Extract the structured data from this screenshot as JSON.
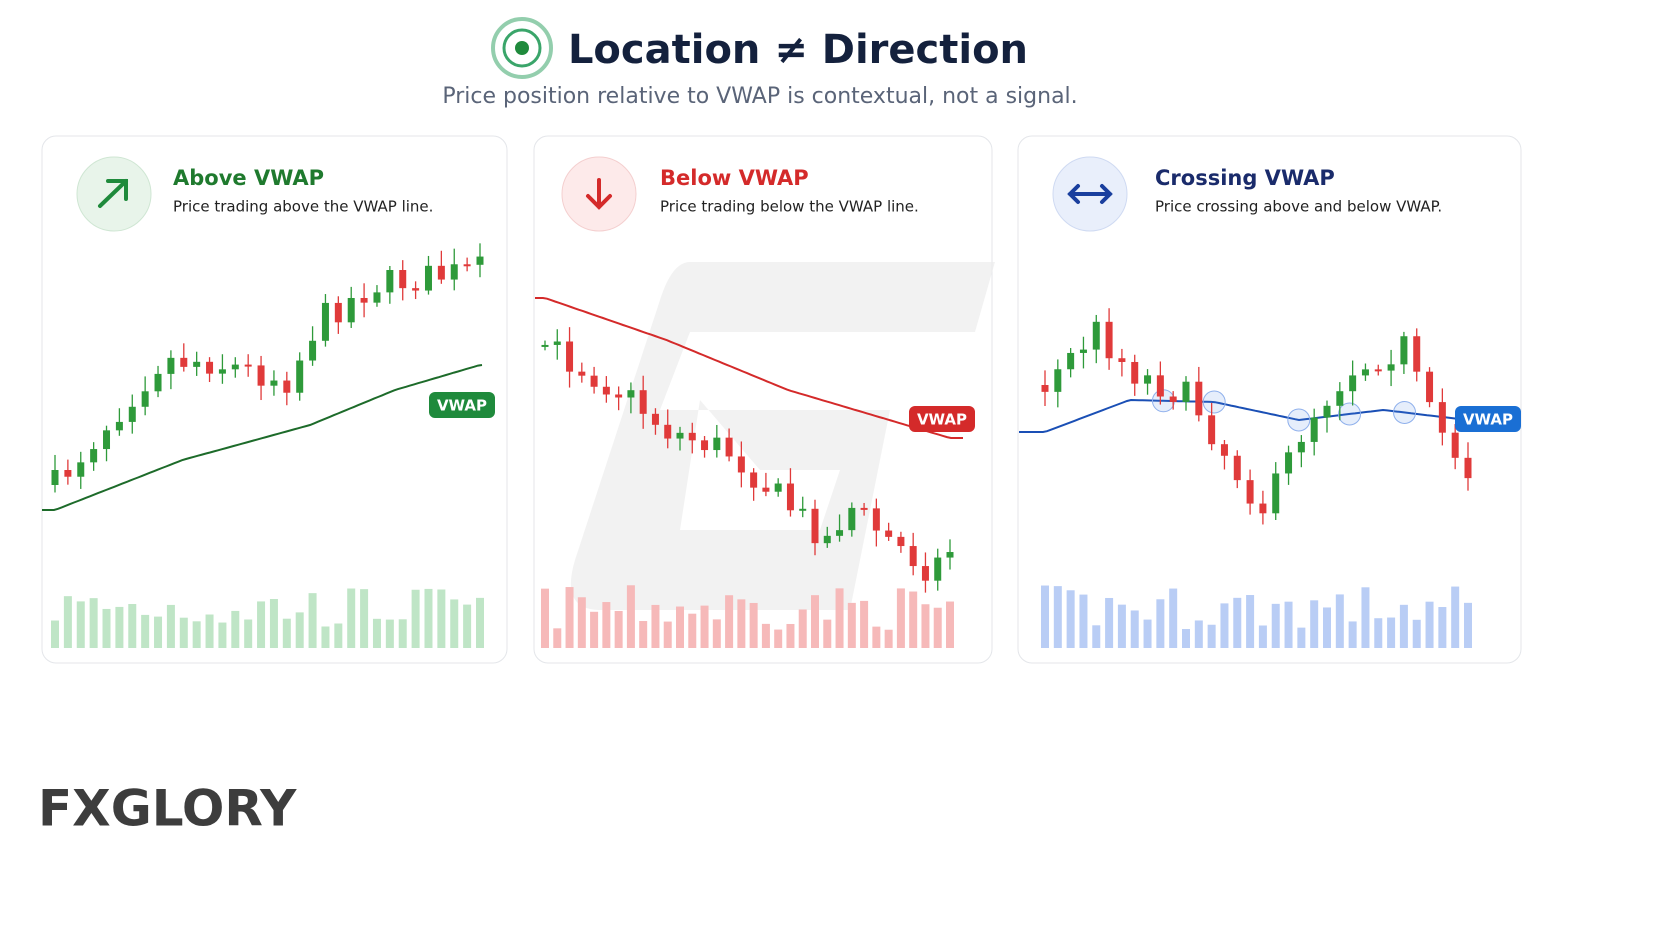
{
  "header": {
    "title": "Location ≠ Direction",
    "subtitle": "Price position relative to VWAP is contextual, not a signal."
  },
  "panels": [
    {
      "title": "Above VWAP",
      "description": "Price trading above the VWAP line.",
      "line_label": "VWAP"
    },
    {
      "title": "Below VWAP",
      "description": "Price trading below the VWAP line.",
      "line_label": "VWAP"
    },
    {
      "title": "Crossing VWAP",
      "description": "Price crossing above and below VWAP.",
      "line_label": "VWAP"
    }
  ],
  "logo": "FXGLORY"
}
